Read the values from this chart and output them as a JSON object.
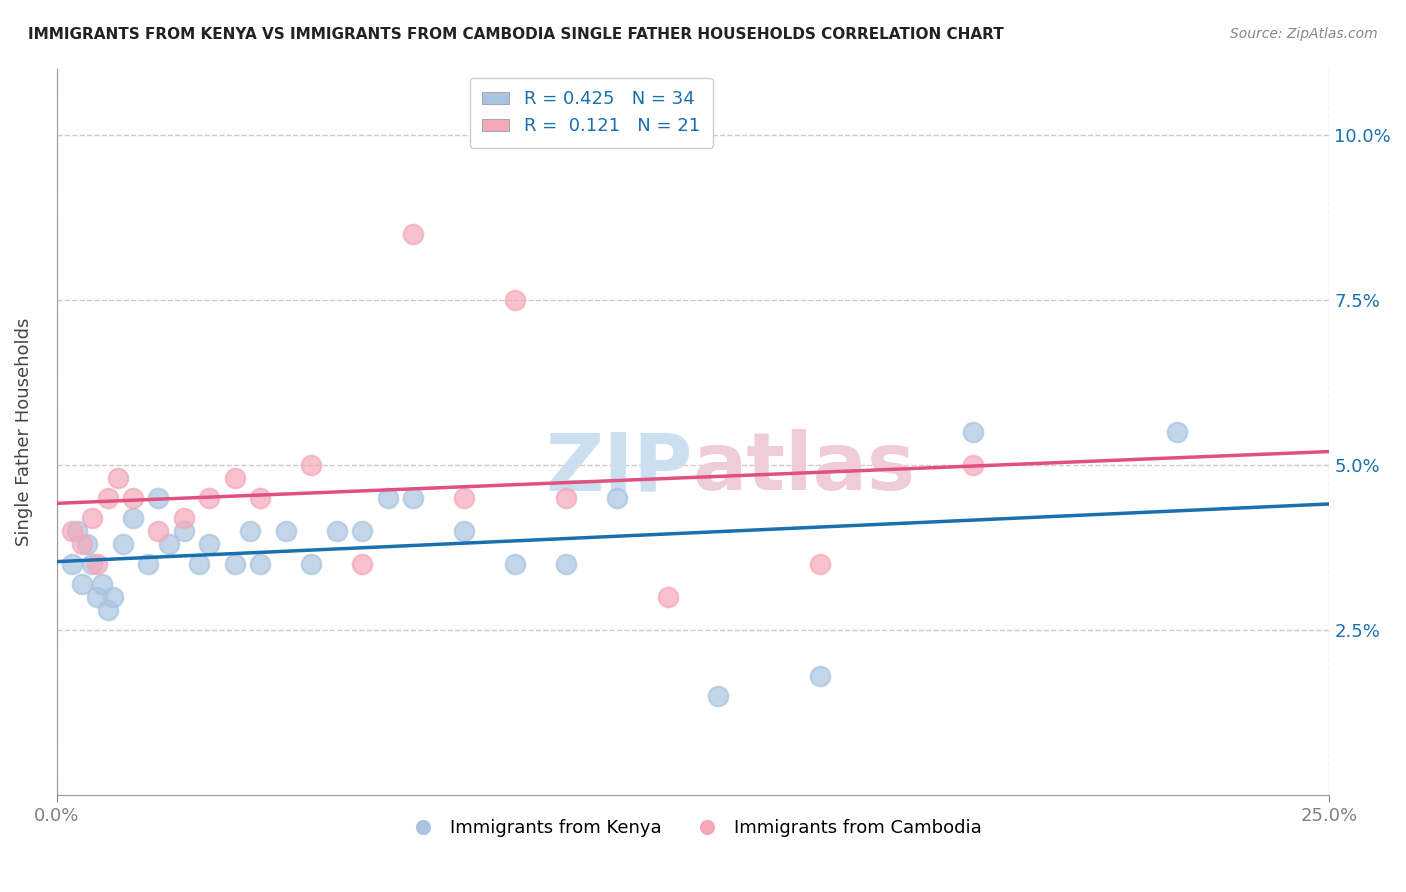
{
  "title": "IMMIGRANTS FROM KENYA VS IMMIGRANTS FROM CAMBODIA SINGLE FATHER HOUSEHOLDS CORRELATION CHART",
  "source": "Source: ZipAtlas.com",
  "ylabel": "Single Father Households",
  "xlim": [
    0.0,
    25.0
  ],
  "ylim": [
    0.0,
    11.0
  ],
  "yticks": [
    2.5,
    5.0,
    7.5,
    10.0
  ],
  "ytick_labels": [
    "2.5%",
    "5.0%",
    "7.5%",
    "10.0%"
  ],
  "background_color": "#ffffff",
  "grid_color": "#cccccc",
  "kenya_color": "#a8c4e0",
  "cambodia_color": "#f4a8b8",
  "kenya_line_color": "#1a6faf",
  "cambodia_line_color": "#e05080",
  "kenya_R": 0.425,
  "kenya_N": 34,
  "cambodia_R": 0.121,
  "cambodia_N": 21,
  "kenya_scatter_x": [
    0.5,
    0.8,
    1.0,
    0.3,
    0.4,
    0.6,
    0.7,
    0.9,
    1.1,
    1.3,
    1.5,
    1.8,
    2.0,
    2.2,
    2.5,
    2.8,
    3.0,
    3.5,
    3.8,
    4.0,
    4.5,
    5.0,
    5.5,
    6.0,
    6.5,
    7.0,
    8.0,
    9.0,
    10.0,
    11.0,
    13.0,
    15.0,
    18.0,
    22.0
  ],
  "kenya_scatter_y": [
    3.2,
    3.0,
    2.8,
    3.5,
    4.0,
    3.8,
    3.5,
    3.2,
    3.0,
    3.8,
    4.2,
    3.5,
    4.5,
    3.8,
    4.0,
    3.5,
    3.8,
    3.5,
    4.0,
    3.5,
    4.0,
    3.5,
    4.0,
    4.0,
    4.5,
    4.5,
    4.0,
    3.5,
    3.5,
    4.5,
    1.5,
    1.8,
    5.5,
    5.5
  ],
  "cambodia_scatter_x": [
    0.3,
    0.5,
    0.7,
    0.8,
    1.0,
    1.2,
    1.5,
    2.0,
    2.5,
    3.0,
    3.5,
    4.0,
    5.0,
    6.0,
    7.0,
    8.0,
    9.0,
    10.0,
    12.0,
    15.0,
    18.0
  ],
  "cambodia_scatter_y": [
    4.0,
    3.8,
    4.2,
    3.5,
    4.5,
    4.8,
    4.5,
    4.0,
    4.2,
    4.5,
    4.8,
    4.5,
    5.0,
    3.5,
    8.5,
    4.5,
    7.5,
    4.5,
    3.0,
    3.5,
    5.0
  ]
}
